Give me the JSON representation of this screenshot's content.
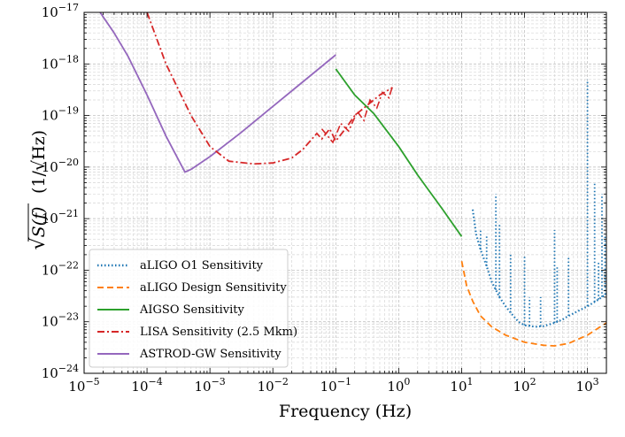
{
  "chart_data": {
    "type": "line",
    "title": "",
    "xlabel": "Frequency (Hz)",
    "ylabel": "(1/√Hz)",
    "ylabel_symbol": "S(f)",
    "xscale": "log",
    "yscale": "log",
    "xlim": [
      1e-05,
      2000
    ],
    "ylim": [
      1e-24,
      1e-17
    ],
    "grid": true,
    "legend_position": "lower-left",
    "x_ticks": [
      {
        "value": 1e-05,
        "label": "10",
        "exp": "−5"
      },
      {
        "value": 0.0001,
        "label": "10",
        "exp": "−4"
      },
      {
        "value": 0.001,
        "label": "10",
        "exp": "−3"
      },
      {
        "value": 0.01,
        "label": "10",
        "exp": "−2"
      },
      {
        "value": 0.1,
        "label": "10",
        "exp": "−1"
      },
      {
        "value": 1,
        "label": "10",
        "exp": "0"
      },
      {
        "value": 10,
        "label": "10",
        "exp": "1"
      },
      {
        "value": 100,
        "label": "10",
        "exp": "2"
      },
      {
        "value": 1000,
        "label": "10",
        "exp": "3"
      }
    ],
    "y_ticks": [
      {
        "value": 1e-24,
        "label": "10",
        "exp": "−24"
      },
      {
        "value": 1e-23,
        "label": "10",
        "exp": "−23"
      },
      {
        "value": 1e-22,
        "label": "10",
        "exp": "−22"
      },
      {
        "value": 1e-21,
        "label": "10",
        "exp": "−21"
      },
      {
        "value": 1e-20,
        "label": "10",
        "exp": "−20"
      },
      {
        "value": 1e-19,
        "label": "10",
        "exp": "−19"
      },
      {
        "value": 1e-18,
        "label": "10",
        "exp": "−18"
      },
      {
        "value": 1e-17,
        "label": "10",
        "exp": "−17"
      }
    ],
    "series": [
      {
        "name": "aLIGO O1 Sensitivity",
        "color": "#1f77b4",
        "style": "dotted",
        "x": [
          15,
          17,
          20,
          25,
          30,
          40,
          50,
          60,
          80,
          100,
          150,
          200,
          300,
          400,
          500,
          700,
          1000,
          1500,
          2000
        ],
        "y": [
          1.5e-21,
          5e-22,
          2.5e-22,
          1.2e-22,
          6e-23,
          3e-23,
          2e-23,
          1.5e-23,
          1e-23,
          8.5e-24,
          8e-24,
          8.2e-24,
          9.5e-24,
          1.1e-23,
          1.3e-23,
          1.6e-23,
          2e-23,
          2.7e-23,
          3.5e-23
        ],
        "peaks": [
          {
            "x": 20,
            "y": 6e-22
          },
          {
            "x": 25,
            "y": 5e-22
          },
          {
            "x": 35,
            "y": 3e-21
          },
          {
            "x": 40,
            "y": 8e-22
          },
          {
            "x": 60,
            "y": 2e-22
          },
          {
            "x": 100,
            "y": 2e-22
          },
          {
            "x": 120,
            "y": 3e-23
          },
          {
            "x": 180,
            "y": 3e-23
          },
          {
            "x": 300,
            "y": 6e-22
          },
          {
            "x": 330,
            "y": 1.2e-22
          },
          {
            "x": 500,
            "y": 1.8e-22
          },
          {
            "x": 1000,
            "y": 5e-19
          },
          {
            "x": 1300,
            "y": 5e-21
          },
          {
            "x": 1500,
            "y": 1.5e-22
          },
          {
            "x": 1700,
            "y": 3e-21
          },
          {
            "x": 1900,
            "y": 5e-22
          }
        ]
      },
      {
        "name": "aLIGO Design Sensitivity",
        "color": "#ff7f0e",
        "style": "dashed",
        "x": [
          10,
          12,
          15,
          20,
          30,
          50,
          100,
          200,
          300,
          500,
          1000,
          2000
        ],
        "y": [
          1.5e-22,
          5e-23,
          2.5e-23,
          1.3e-23,
          8e-24,
          5.5e-24,
          4e-24,
          3.5e-24,
          3.4e-24,
          3.8e-24,
          5.5e-24,
          9.5e-24
        ]
      },
      {
        "name": "AIGSO Sensitivity",
        "color": "#2ca02c",
        "style": "solid",
        "x": [
          0.1,
          0.2,
          0.4,
          1,
          2,
          5,
          10
        ],
        "y": [
          8e-19,
          2.5e-19,
          1.1e-19,
          2.5e-20,
          7e-21,
          1.5e-21,
          4.5e-22
        ]
      },
      {
        "name": "LISA Sensitivity (2.5 Mkm)",
        "color": "#d62728",
        "style": "dashdot",
        "x": [
          0.0001,
          0.0002,
          0.0005,
          0.001,
          0.002,
          0.005,
          0.01,
          0.02,
          0.03,
          0.05,
          0.06,
          0.08,
          0.1,
          0.15,
          0.2,
          0.3,
          0.5,
          0.8
        ],
        "y": [
          1e-17,
          1e-18,
          1e-19,
          2.5e-20,
          1.3e-20,
          1.15e-20,
          1.2e-20,
          1.5e-20,
          2.2e-20,
          4.5e-20,
          3.5e-20,
          5.5e-20,
          3.2e-20,
          6e-20,
          1e-19,
          1.5e-19,
          2.5e-19,
          3.5e-19
        ],
        "ripples": [
          {
            "x": 0.06,
            "y": 5.5e-20
          },
          {
            "x": 0.09,
            "y": 3e-20
          },
          {
            "x": 0.12,
            "y": 7e-20
          },
          {
            "x": 0.16,
            "y": 5e-20
          },
          {
            "x": 0.22,
            "y": 1.2e-19
          },
          {
            "x": 0.28,
            "y": 8e-20
          },
          {
            "x": 0.35,
            "y": 2e-19
          },
          {
            "x": 0.45,
            "y": 1.4e-19
          },
          {
            "x": 0.55,
            "y": 2.8e-19
          },
          {
            "x": 0.7,
            "y": 2.2e-19
          },
          {
            "x": 0.8,
            "y": 3.8e-19
          }
        ]
      },
      {
        "name": "ASTROD-GW Sensitivity",
        "color": "#9467bd",
        "style": "solid",
        "x": [
          1.8e-05,
          3e-05,
          5e-05,
          0.0001,
          0.0002,
          0.0004,
          0.0005,
          0.001,
          0.003,
          0.01,
          0.03,
          0.1
        ],
        "y": [
          1e-17,
          4e-18,
          1.4e-18,
          2.5e-19,
          4e-20,
          8e-21,
          9e-21,
          1.6e-20,
          4.5e-20,
          1.5e-19,
          4.5e-19,
          1.5e-18
        ]
      }
    ]
  }
}
